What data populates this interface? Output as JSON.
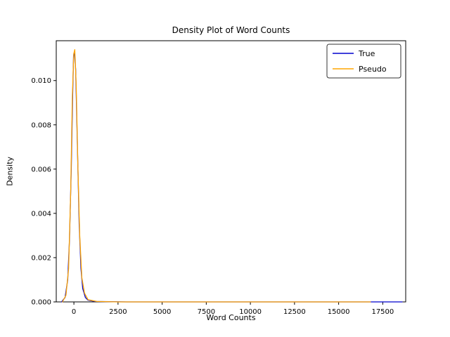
{
  "chart_data": {
    "type": "line",
    "title": "Density Plot of Word Counts",
    "xlabel": "Word Counts",
    "ylabel": "Density",
    "xlim": [
      -1000,
      18800
    ],
    "ylim": [
      0,
      0.0118
    ],
    "x_ticks": [
      0,
      2500,
      5000,
      7500,
      10000,
      12500,
      15000,
      17500
    ],
    "y_ticks": [
      0,
      0.002,
      0.004,
      0.006,
      0.008,
      0.01
    ],
    "grid": false,
    "legend": {
      "position": "upper right",
      "entries": [
        "True",
        "Pseudo"
      ]
    },
    "series": [
      {
        "name": "True",
        "color": "#0000cd",
        "points": [
          [
            -700,
            0
          ],
          [
            -500,
            0.0002
          ],
          [
            -350,
            0.001
          ],
          [
            -250,
            0.0028
          ],
          [
            -150,
            0.006
          ],
          [
            -80,
            0.009
          ],
          [
            -20,
            0.0111
          ],
          [
            30,
            0.0113
          ],
          [
            100,
            0.0105
          ],
          [
            200,
            0.007
          ],
          [
            300,
            0.0035
          ],
          [
            400,
            0.0015
          ],
          [
            500,
            0.0006
          ],
          [
            650,
            0.0002
          ],
          [
            800,
            8e-05
          ],
          [
            1200,
            2e-05
          ],
          [
            2000,
            1e-05
          ],
          [
            3000,
            0
          ],
          [
            6000,
            0
          ],
          [
            10000,
            0
          ],
          [
            14000,
            0
          ],
          [
            17000,
            0
          ],
          [
            18000,
            0
          ],
          [
            18600,
            0
          ]
        ]
      },
      {
        "name": "Pseudo",
        "color": "#ffa500",
        "points": [
          [
            -650,
            0
          ],
          [
            -450,
            0.0003
          ],
          [
            -300,
            0.0015
          ],
          [
            -180,
            0.005
          ],
          [
            -90,
            0.0092
          ],
          [
            -10,
            0.0112
          ],
          [
            50,
            0.0114
          ],
          [
            130,
            0.0098
          ],
          [
            230,
            0.006
          ],
          [
            330,
            0.003
          ],
          [
            450,
            0.0011
          ],
          [
            600,
            0.0004
          ],
          [
            800,
            0.0001
          ],
          [
            1300,
            2e-05
          ],
          [
            2500,
            0
          ],
          [
            6000,
            0
          ],
          [
            10000,
            0
          ],
          [
            14000,
            0
          ],
          [
            16800,
            0
          ]
        ]
      }
    ]
  }
}
